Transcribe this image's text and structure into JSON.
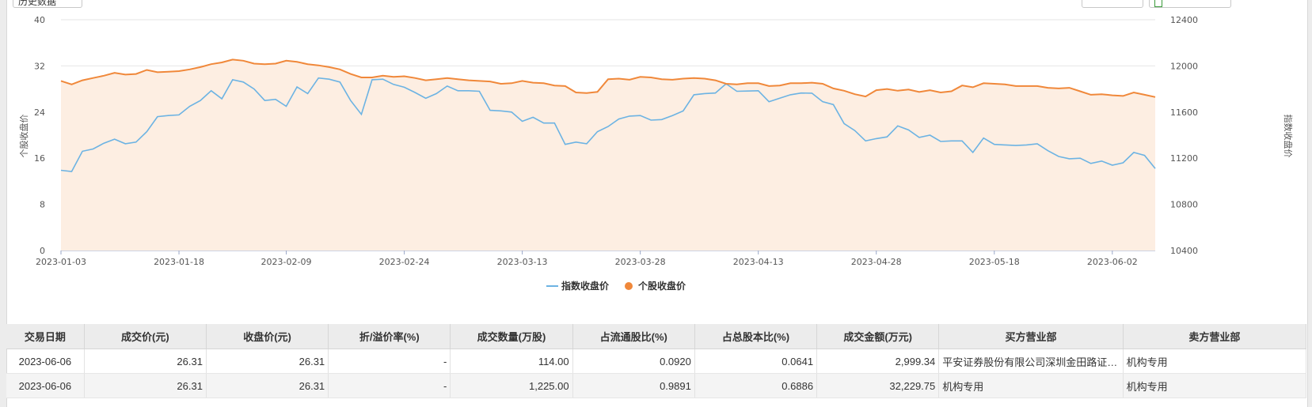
{
  "top_buttons": [
    {
      "label": "历史数据"
    },
    {
      "label": ""
    },
    {
      "label": ""
    }
  ],
  "chart_data": {
    "type": "line",
    "y_left_label": "个股收盘价",
    "y_right_label": "指数收盘价",
    "y_left_ticks": [
      "0",
      "8",
      "16",
      "24",
      "32",
      "40"
    ],
    "y_right_ticks": [
      "10400",
      "10800",
      "11200",
      "11600",
      "12000",
      "12400"
    ],
    "ylim_left": [
      0,
      40
    ],
    "ylim_right": [
      10400,
      12400
    ],
    "x_ticks": [
      "2023-01-03",
      "2023-01-18",
      "2023-02-09",
      "2023-02-24",
      "2023-03-13",
      "2023-03-28",
      "2023-04-13",
      "2023-04-28",
      "2023-05-18",
      "2023-06-02"
    ],
    "x_tick_index": [
      0,
      11,
      21,
      32,
      43,
      54,
      65,
      76,
      87,
      98
    ],
    "grid": true,
    "legend_position": "bottom",
    "colors": {
      "index": "#6cb3e3",
      "stock": "#f0883a",
      "area": "#fdeee2"
    },
    "series": [
      {
        "name": "指数收盘价",
        "axis": "right",
        "values": [
          11095,
          11085,
          11260,
          11280,
          11330,
          11365,
          11325,
          11340,
          11430,
          11560,
          11570,
          11575,
          11650,
          11700,
          11785,
          11715,
          11880,
          11860,
          11800,
          11700,
          11710,
          11650,
          11818,
          11760,
          11895,
          11885,
          11860,
          11700,
          11580,
          11880,
          11885,
          11840,
          11815,
          11770,
          11720,
          11760,
          11825,
          11785,
          11785,
          11780,
          11615,
          11610,
          11600,
          11520,
          11555,
          11505,
          11505,
          11320,
          11340,
          11325,
          11430,
          11475,
          11540,
          11565,
          11570,
          11530,
          11535,
          11570,
          11610,
          11750,
          11760,
          11765,
          11845,
          11780,
          11782,
          11785,
          11690,
          11720,
          11750,
          11765,
          11764,
          11690,
          11665,
          11500,
          11440,
          11350,
          11370,
          11385,
          11480,
          11445,
          11380,
          11400,
          11345,
          11350,
          11350,
          11250,
          11375,
          11320,
          11315,
          11310,
          11315,
          11325,
          11265,
          11215,
          11195,
          11200,
          11155,
          11175,
          11140,
          11160,
          11250,
          11225,
          11110
        ]
      },
      {
        "name": "个股收盘价",
        "axis": "left",
        "values": [
          29.4,
          28.8,
          29.5,
          29.9,
          30.3,
          30.8,
          30.5,
          30.6,
          31.3,
          30.9,
          31.0,
          31.1,
          31.4,
          31.8,
          32.3,
          32.6,
          33.1,
          32.9,
          32.4,
          32.3,
          32.4,
          32.9,
          32.7,
          32.3,
          32.1,
          31.8,
          31.4,
          30.6,
          30.0,
          30.0,
          30.3,
          30.1,
          30.2,
          29.9,
          29.5,
          29.7,
          29.9,
          29.7,
          29.5,
          29.4,
          29.3,
          28.9,
          29.0,
          29.4,
          29.1,
          29.0,
          28.6,
          28.5,
          27.4,
          27.3,
          27.5,
          29.7,
          29.8,
          29.6,
          30.1,
          30.0,
          29.7,
          29.6,
          29.8,
          29.9,
          29.8,
          29.5,
          28.9,
          28.8,
          29.0,
          29.0,
          28.5,
          28.6,
          29.0,
          29.0,
          29.1,
          28.9,
          28.1,
          27.7,
          27.1,
          26.7,
          27.8,
          28.0,
          27.7,
          27.9,
          27.5,
          27.8,
          27.4,
          27.6,
          28.6,
          28.3,
          29.0,
          28.9,
          28.8,
          28.5,
          28.5,
          28.5,
          28.2,
          28.1,
          28.2,
          27.6,
          27.0,
          27.1,
          26.9,
          26.8,
          27.4,
          27.0,
          26.6
        ]
      }
    ]
  },
  "table": {
    "headers": [
      "交易日期",
      "成交价(元)",
      "收盘价(元)",
      "折/溢价率(%)",
      "成交数量(万股)",
      "占流通股比(%)",
      "占总股本比(%)",
      "成交金额(万元)",
      "买方营业部",
      "卖方营业部"
    ],
    "rows": [
      [
        "2023-06-06",
        "26.31",
        "26.31",
        "-",
        "114.00",
        "0.0920",
        "0.0641",
        "2,999.34",
        "平安证券股份有限公司深圳金田路证券营业部",
        "机构专用"
      ],
      [
        "2023-06-06",
        "26.31",
        "26.31",
        "-",
        "1,225.00",
        "0.9891",
        "0.6886",
        "32,229.75",
        "机构专用",
        "机构专用"
      ]
    ]
  }
}
